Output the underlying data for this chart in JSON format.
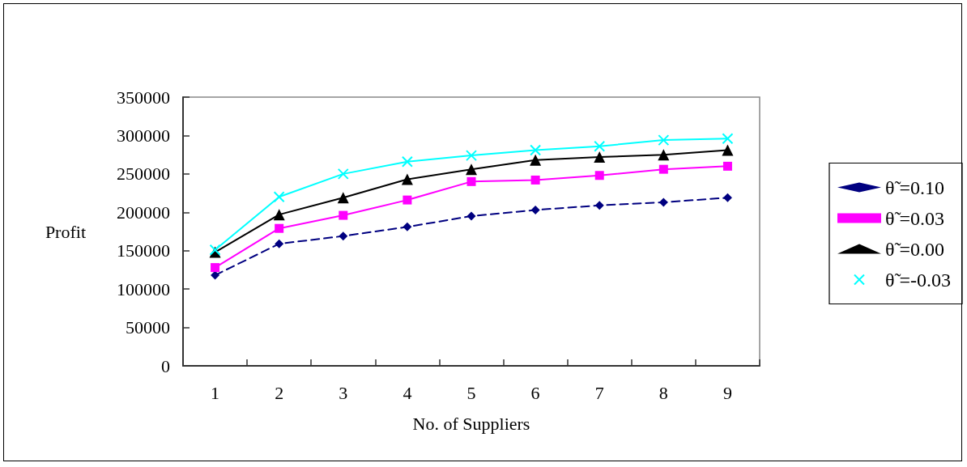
{
  "chart_data": {
    "type": "line",
    "xlabel": "No. of Suppliers",
    "ylabel": "Profit",
    "categories": [
      "1",
      "2",
      "3",
      "4",
      "5",
      "6",
      "7",
      "8",
      "9"
    ],
    "series": [
      {
        "name": "θ̃ =0.10",
        "color": "#000080",
        "marker": "diamond",
        "line_style": "dashed",
        "values": [
          118000,
          159000,
          169000,
          181000,
          195000,
          203000,
          209000,
          213000,
          219000
        ]
      },
      {
        "name": "θ̃ =0.03",
        "color": "#ff00ff",
        "marker": "square",
        "line_style": "solid",
        "values": [
          128000,
          179000,
          196000,
          216000,
          240000,
          242000,
          248000,
          256000,
          260000
        ]
      },
      {
        "name": "θ̃ =0.00",
        "color": "#000000",
        "marker": "triangle",
        "line_style": "solid",
        "values": [
          148000,
          197000,
          219000,
          243000,
          256000,
          268000,
          272000,
          275000,
          281000
        ]
      },
      {
        "name": "θ̃ =-0.03",
        "color": "#00ffff",
        "marker": "cross",
        "line_style": "solid",
        "values": [
          151000,
          220000,
          250000,
          266000,
          274000,
          281000,
          286000,
          294000,
          296000
        ]
      }
    ],
    "ylim": [
      0,
      350000
    ],
    "yticks": [
      0,
      50000,
      100000,
      150000,
      200000,
      250000,
      300000,
      350000
    ],
    "grid": false,
    "legend": "right"
  }
}
